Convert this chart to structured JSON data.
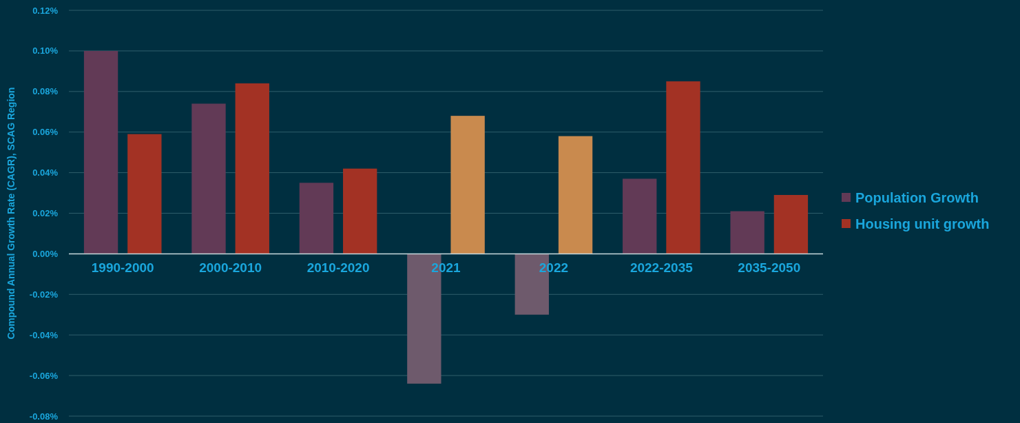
{
  "chart_data": {
    "type": "bar",
    "ylabel": "Compound Annual Growth Rate (CAGR), SCAG Region",
    "categories": [
      "1990-2000",
      "2000-2010",
      "2010-2020",
      "2021",
      "2022",
      "2022-2035",
      "2035-2050"
    ],
    "series": [
      {
        "name": "Population Growth",
        "color": "#623a56",
        "colors": [
          "#623a56",
          "#623a56",
          "#623a56",
          "#6e5a6c",
          "#6e5a6c",
          "#623a56",
          "#623a56"
        ],
        "values": [
          0.1,
          0.074,
          0.035,
          -0.064,
          -0.03,
          0.037,
          0.021
        ]
      },
      {
        "name": "Housing unit growth",
        "color": "#a33224",
        "colors": [
          "#a33224",
          "#a33224",
          "#a33224",
          "#c98a4e",
          "#c98a4e",
          "#a33224",
          "#a33224"
        ],
        "values": [
          0.059,
          0.084,
          0.042,
          0.068,
          0.058,
          0.085,
          0.029
        ]
      }
    ],
    "ylim": [
      -0.08,
      0.12
    ],
    "yticks": [
      {
        "value": -0.08,
        "label": "-0.08%"
      },
      {
        "value": -0.06,
        "label": "-0.06%"
      },
      {
        "value": -0.04,
        "label": "-0.04%"
      },
      {
        "value": -0.02,
        "label": "-0.02%"
      },
      {
        "value": 0,
        "label": "0.00%"
      },
      {
        "value": 0.02,
        "label": "0.02%"
      },
      {
        "value": 0.04,
        "label": "0.04%"
      },
      {
        "value": 0.06,
        "label": "0.06%"
      },
      {
        "value": 0.08,
        "label": "0.08%"
      },
      {
        "value": 0.1,
        "label": "0.10%"
      },
      {
        "value": 0.12,
        "label": "0.12%"
      }
    ],
    "grid": "y",
    "legend": "right"
  }
}
